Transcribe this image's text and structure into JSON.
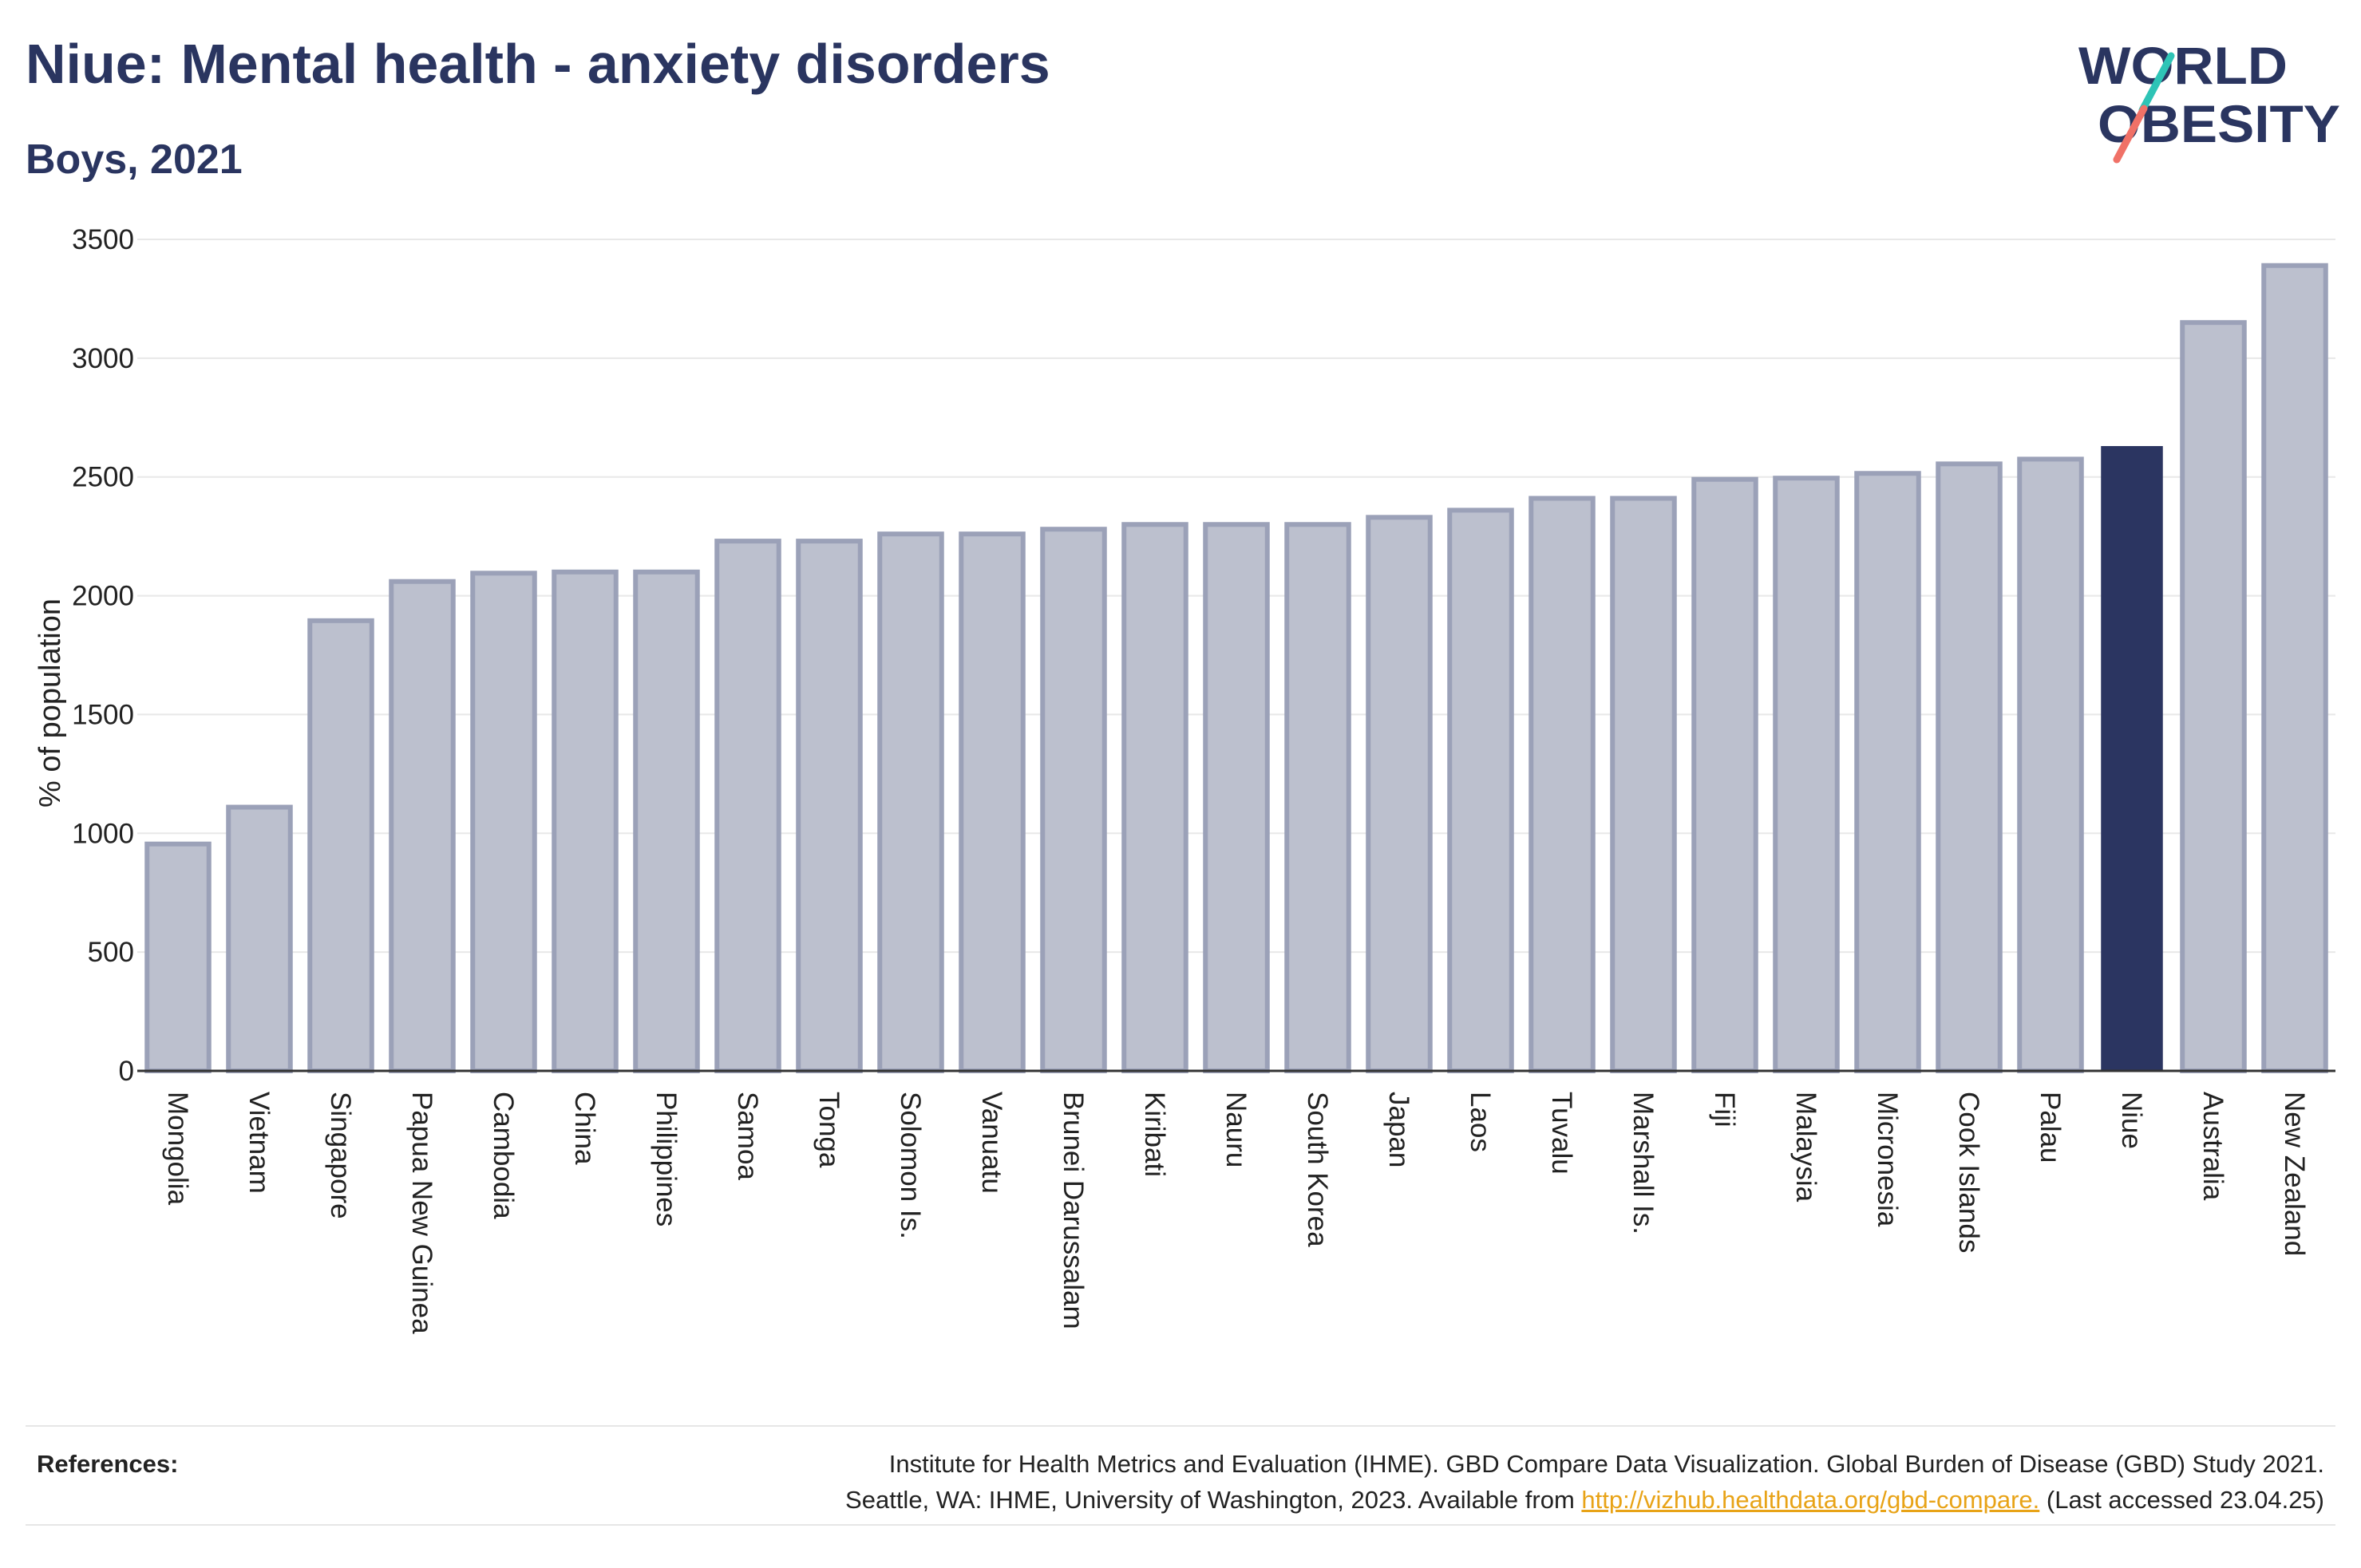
{
  "title": "Niue: Mental health - anxiety disorders",
  "subtitle": "Boys, 2021",
  "logo": {
    "line1": "WORLD",
    "line2": "OBESITY"
  },
  "colors": {
    "bar": "#bcc0ce",
    "bar_border": "#9ba1b8",
    "highlight": "#2b3561",
    "text": "#2a3560",
    "grid": "#e8e8e8",
    "link": "#e8a317",
    "logo_teal": "#2ec4b6",
    "logo_coral": "#f07167"
  },
  "references": {
    "label": "References:",
    "line1": "Institute for Health Metrics and Evaluation (IHME). GBD Compare Data Visualization. Global Burden of Disease (GBD) Study 2021.",
    "line2_prefix": "Seattle, WA: IHME, University of Washington, 2023. Available from ",
    "link": "http://vizhub.healthdata.org/gbd-compare.",
    "line2_suffix": " (Last accessed 23.04.25)"
  },
  "chart_data": {
    "type": "bar",
    "ylabel": "% of population",
    "xlabel": "",
    "ylim": [
      0,
      3500
    ],
    "yticks": [
      0,
      500,
      1000,
      1500,
      2000,
      2500,
      3000,
      3500
    ],
    "grid": true,
    "highlight": "Niue",
    "categories": [
      "Mongolia",
      "Vietnam",
      "Singapore",
      "Papua New Guinea",
      "Cambodia",
      "China",
      "Philippines",
      "Samoa",
      "Tonga",
      "Solomon Is.",
      "Vanuatu",
      "Brunei Darussalam",
      "Kiribati",
      "Nauru",
      "South Korea",
      "Japan",
      "Laos",
      "Tuvalu",
      "Marshall Is.",
      "Fiji",
      "Malaysia",
      "Micronesia",
      "Cook Islands",
      "Palau",
      "Niue",
      "Australia",
      "New Zealand"
    ],
    "values": [
      955,
      1110,
      1895,
      2060,
      2095,
      2100,
      2100,
      2230,
      2230,
      2260,
      2260,
      2280,
      2300,
      2300,
      2300,
      2330,
      2360,
      2410,
      2410,
      2490,
      2495,
      2515,
      2555,
      2575,
      2630,
      3150,
      3390
    ]
  }
}
